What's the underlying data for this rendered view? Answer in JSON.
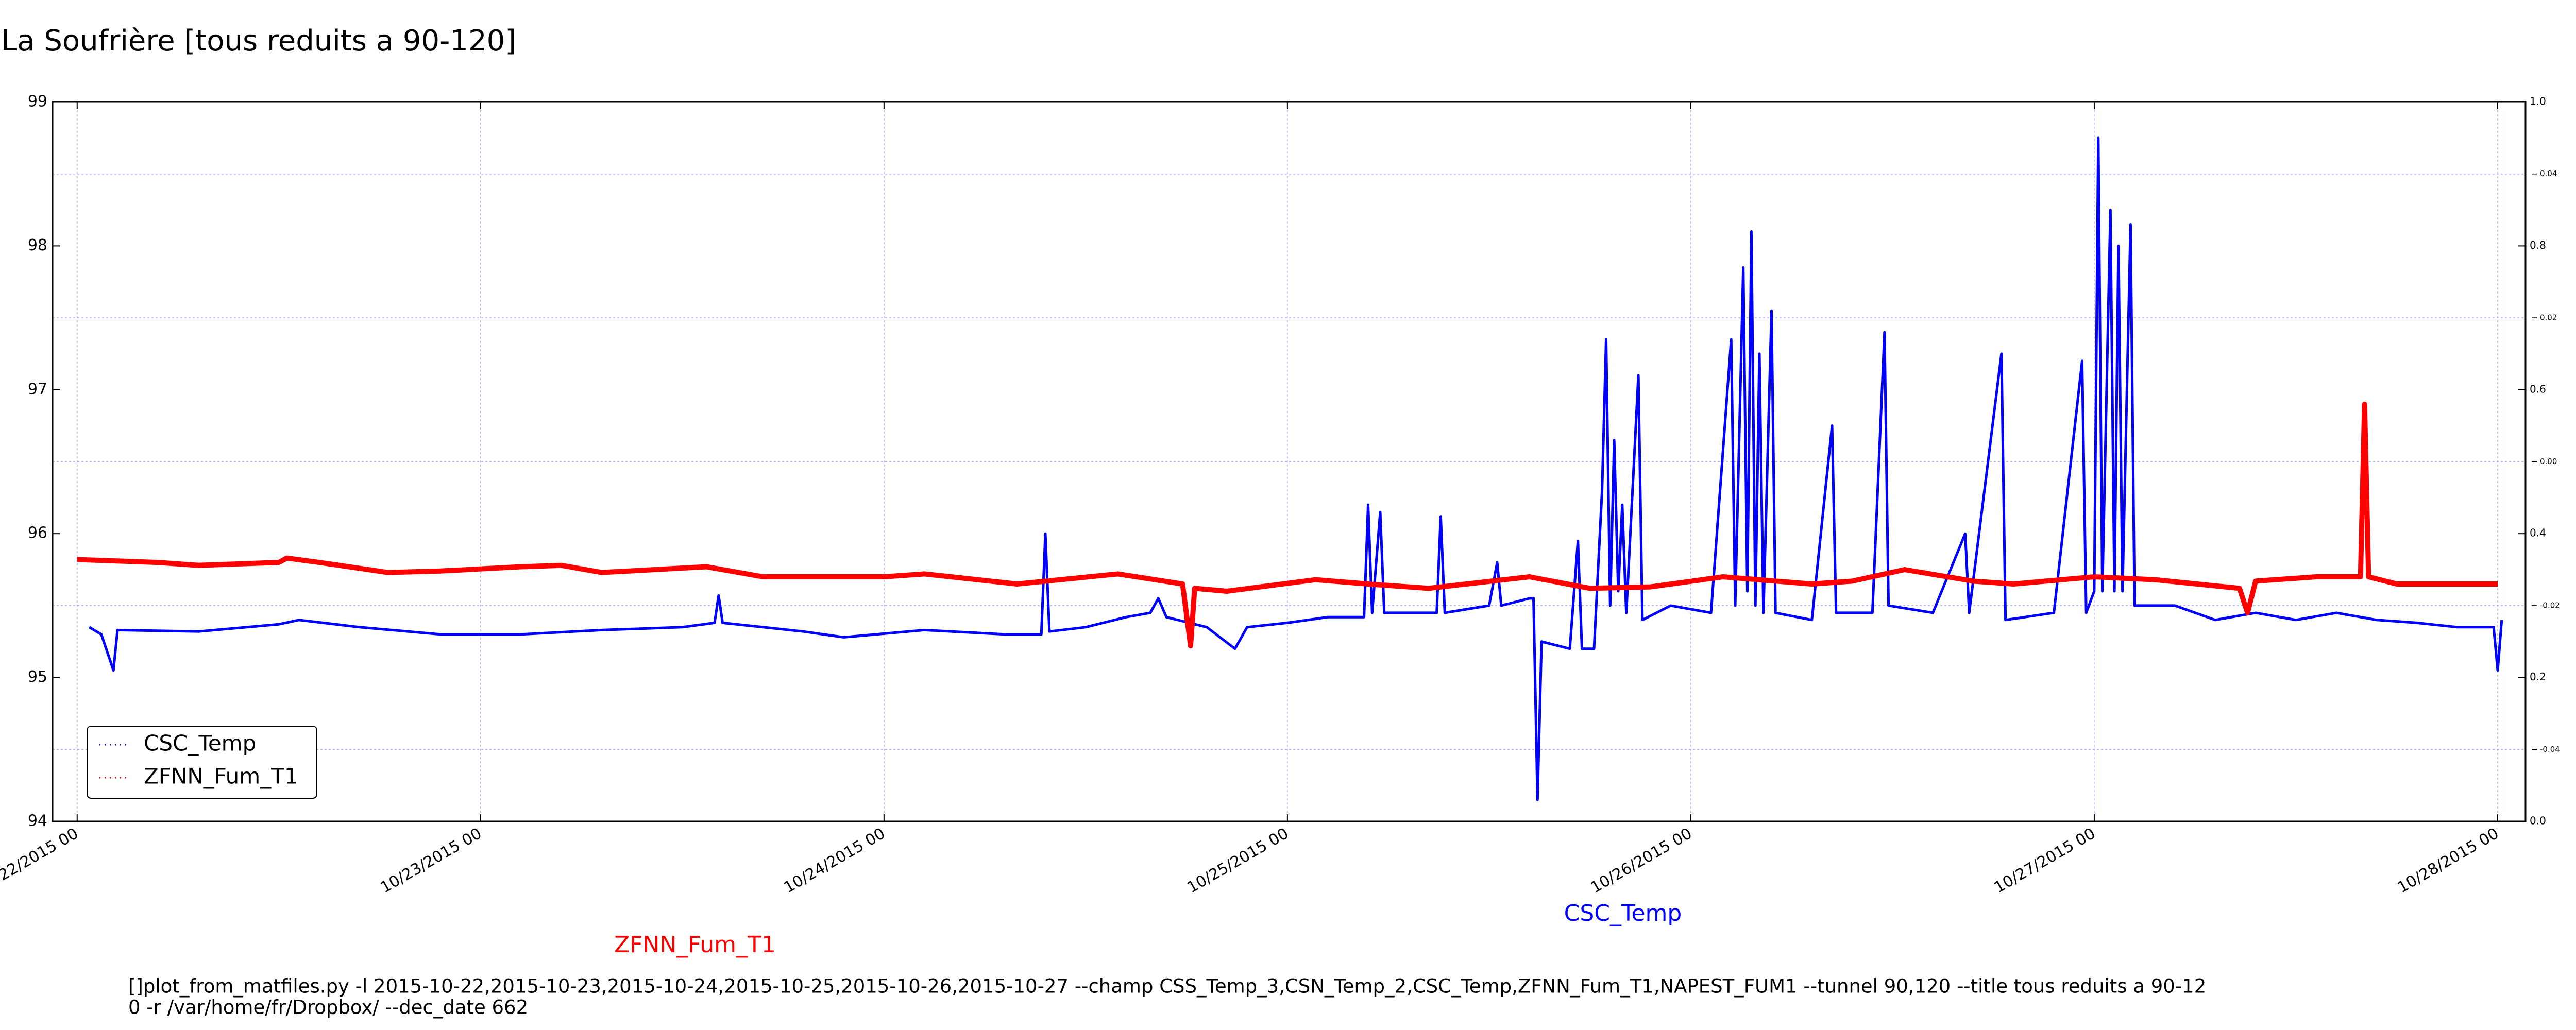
{
  "chart_data": {
    "type": "line",
    "title": "La Soufrière [tous reduits a 90-120]",
    "xlim": [
      -0.061,
      6.069
    ],
    "xticks": [
      {
        "value": 0,
        "label": "10/22/2015 00"
      },
      {
        "value": 1,
        "label": "10/23/2015 00"
      },
      {
        "value": 2,
        "label": "10/24/2015 00"
      },
      {
        "value": 3,
        "label": "10/25/2015 00"
      },
      {
        "value": 4,
        "label": "10/26/2015 00"
      },
      {
        "value": 5,
        "label": "10/27/2015 00"
      },
      {
        "value": 6,
        "label": "10/28/2015 00"
      }
    ],
    "ylim": [
      94,
      99
    ],
    "yticks": [
      94,
      95,
      96,
      97,
      98,
      99
    ],
    "y2lim": [
      0,
      1
    ],
    "y2ticks": [
      {
        "value": 0,
        "label": "0.0"
      },
      {
        "value": 0.2,
        "label": "0.2"
      },
      {
        "value": 0.4,
        "label": "0.4"
      },
      {
        "value": 0.6,
        "label": "0.6"
      },
      {
        "value": 0.8,
        "label": "0.8"
      },
      {
        "value": 1,
        "label": "1.0"
      }
    ],
    "y3lim": [
      -0.05,
      0.05
    ],
    "y3ticks": [
      -0.04,
      -0.02,
      {
        "value": 0,
        "label": "0.00"
      },
      0.02,
      0.04
    ],
    "grid": true,
    "legend": "lower left",
    "series": [
      {
        "name": "CSC_Temp",
        "color": "#0000ff",
        "x": [
          0.03,
          0.06,
          0.09,
          0.1,
          0.3,
          0.5,
          0.55,
          0.7,
          0.9,
          1.1,
          1.3,
          1.5,
          1.58,
          1.59,
          1.6,
          1.8,
          1.9,
          2.1,
          2.3,
          2.39,
          2.4,
          2.41,
          2.5,
          2.6,
          2.66,
          2.68,
          2.7,
          2.8,
          2.87,
          2.9,
          3.0,
          3.1,
          3.19,
          3.2,
          3.21,
          3.23,
          3.24,
          3.37,
          3.38,
          3.39,
          3.5,
          3.52,
          3.53,
          3.6,
          3.61,
          3.62,
          3.63,
          3.7,
          3.72,
          3.73,
          3.76,
          3.78,
          3.79,
          3.8,
          3.81,
          3.82,
          3.83,
          3.84,
          3.87,
          3.88,
          3.95,
          4.05,
          4.1,
          4.11,
          4.13,
          4.14,
          4.15,
          4.16,
          4.17,
          4.18,
          4.2,
          4.21,
          4.3,
          4.35,
          4.36,
          4.45,
          4.48,
          4.49,
          4.6,
          4.68,
          4.69,
          4.77,
          4.78,
          4.9,
          4.97,
          4.98,
          5.0,
          5.01,
          5.02,
          5.04,
          5.05,
          5.06,
          5.07,
          5.09,
          5.1,
          5.2,
          5.3,
          5.4,
          5.5,
          5.6,
          5.7,
          5.8,
          5.9,
          5.99,
          6.0,
          6.01
        ],
        "values": [
          95.35,
          95.3,
          95.05,
          95.33,
          95.32,
          95.37,
          95.4,
          95.35,
          95.3,
          95.3,
          95.33,
          95.35,
          95.38,
          95.57,
          95.38,
          95.32,
          95.28,
          95.33,
          95.3,
          95.3,
          96.0,
          95.32,
          95.35,
          95.42,
          95.45,
          95.55,
          95.42,
          95.35,
          95.2,
          95.35,
          95.38,
          95.42,
          95.42,
          96.2,
          95.45,
          96.15,
          95.45,
          95.45,
          96.12,
          95.45,
          95.5,
          95.8,
          95.5,
          95.55,
          95.55,
          94.15,
          95.25,
          95.2,
          95.95,
          95.2,
          95.2,
          96.3,
          97.35,
          95.5,
          96.65,
          95.6,
          96.2,
          95.45,
          97.1,
          95.4,
          95.5,
          95.45,
          97.35,
          95.5,
          97.85,
          95.6,
          98.1,
          95.5,
          97.25,
          95.45,
          97.55,
          95.45,
          95.4,
          96.75,
          95.45,
          95.45,
          97.4,
          95.5,
          95.45,
          96.0,
          95.45,
          97.25,
          95.4,
          95.45,
          97.2,
          95.45,
          95.6,
          98.75,
          95.6,
          98.25,
          95.6,
          98.0,
          95.6,
          98.15,
          95.5,
          95.5,
          95.4,
          95.45,
          95.4,
          95.45,
          95.4,
          95.38,
          95.35,
          95.35,
          95.05,
          95.4
        ]
      },
      {
        "name": "ZFNN_Fum_T1",
        "color": "#ff0000",
        "x": [
          0,
          0.2,
          0.3,
          0.5,
          0.52,
          0.6,
          0.77,
          0.9,
          1.1,
          1.2,
          1.3,
          1.56,
          1.7,
          2.0,
          2.1,
          2.33,
          2.58,
          2.74,
          2.76,
          2.77,
          2.85,
          3.07,
          3.2,
          3.35,
          3.6,
          3.75,
          3.9,
          4.08,
          4.3,
          4.4,
          4.53,
          4.7,
          4.8,
          5.0,
          5.15,
          5.36,
          5.38,
          5.4,
          5.55,
          5.66,
          5.67,
          5.68,
          5.75,
          6.0
        ],
        "values": [
          95.82,
          95.8,
          95.78,
          95.8,
          95.83,
          95.8,
          95.73,
          95.74,
          95.77,
          95.78,
          95.73,
          95.77,
          95.7,
          95.7,
          95.72,
          95.65,
          95.72,
          95.65,
          95.22,
          95.62,
          95.6,
          95.68,
          95.65,
          95.62,
          95.7,
          95.62,
          95.63,
          95.7,
          95.65,
          95.67,
          95.75,
          95.67,
          95.65,
          95.7,
          95.68,
          95.62,
          95.45,
          95.67,
          95.7,
          95.7,
          96.9,
          95.7,
          95.65,
          95.65
        ]
      }
    ],
    "annotations": [
      {
        "text": "CSC_Temp",
        "color": "#0000ff"
      },
      {
        "text": "ZFNN_Fum_T1",
        "color": "#ff0000"
      }
    ],
    "command_lines": [
      "[]plot_from_matfiles.py -l 2015-10-22,2015-10-23,2015-10-24,2015-10-25,2015-10-26,2015-10-27 --champ CSS_Temp_3,CSN_Temp_2,CSC_Temp,ZFNN_Fum_T1,NAPEST_FUM1 --tunnel 90,120 --title tous reduits a 90-12",
      "0 -r /var/home/fr/Dropbox/ --dec_date 662"
    ]
  }
}
